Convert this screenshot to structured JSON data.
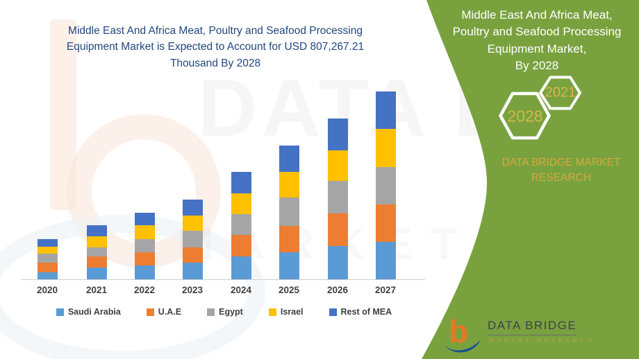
{
  "left": {
    "title": "Middle East And Africa Meat, Poultry and Seafood Processing\nEquipment Market is Expected to Account for USD 807,267.21\nThousand By 2028"
  },
  "right": {
    "title": "Middle East And Africa Meat,\nPoultry and Seafood Processing\nEquipment Market,\nBy 2028",
    "hexagons": [
      {
        "label": "2028"
      },
      {
        "label": "2021"
      }
    ],
    "brand_caption": "DATA BRIDGE MARKET\nRESEARCH",
    "logo": {
      "letter": "b",
      "wordmark": "DATA BRIDGE",
      "subtext": "MARKET RESEARCH"
    }
  },
  "watermark": {
    "line1": "DATA BRIDGE",
    "line2": "MARKET RESEARCH"
  },
  "colors": {
    "panel_green": "#79a23f",
    "title_blue": "#21477c",
    "gold": "#d8b54a",
    "caption_gold": "#d5a93b",
    "axis_label": "#3f3f3f",
    "logo_orange": "#e87725",
    "logo_blue": "#1d4f91"
  },
  "chart_data": {
    "type": "bar",
    "stacked": true,
    "title": "Middle East And Africa Meat, Poultry and Seafood Processing Equipment Market is Expected to Account for USD 807,267.21 Thousand By 2028",
    "categories": [
      "2020",
      "2021",
      "2022",
      "2023",
      "2024",
      "2025",
      "2026",
      "2027"
    ],
    "series": [
      {
        "name": "Saudi Arabia",
        "color": "#5B9BD5",
        "values": [
          10,
          17,
          20,
          24,
          33,
          39,
          48,
          54
        ]
      },
      {
        "name": "U.A.E",
        "color": "#ED7D31",
        "values": [
          14,
          16,
          19,
          22,
          31,
          38,
          47,
          54
        ]
      },
      {
        "name": "Egypt",
        "color": "#A5A5A5",
        "values": [
          13,
          13,
          19,
          24,
          30,
          41,
          47,
          54
        ]
      },
      {
        "name": "Israel",
        "color": "#FFC000",
        "values": [
          10,
          16,
          20,
          22,
          30,
          37,
          44,
          55
        ]
      },
      {
        "name": "Rest of MEA",
        "color": "#4472C4",
        "values": [
          11,
          16,
          18,
          23,
          31,
          38,
          46,
          54
        ]
      }
    ],
    "totals": [
      58,
      78,
      96,
      115,
      155,
      193,
      232,
      271
    ],
    "units": "relative units (no value axis shown in figure)",
    "xlabel": "",
    "ylabel": "",
    "grid": false,
    "legend_position": "bottom"
  }
}
